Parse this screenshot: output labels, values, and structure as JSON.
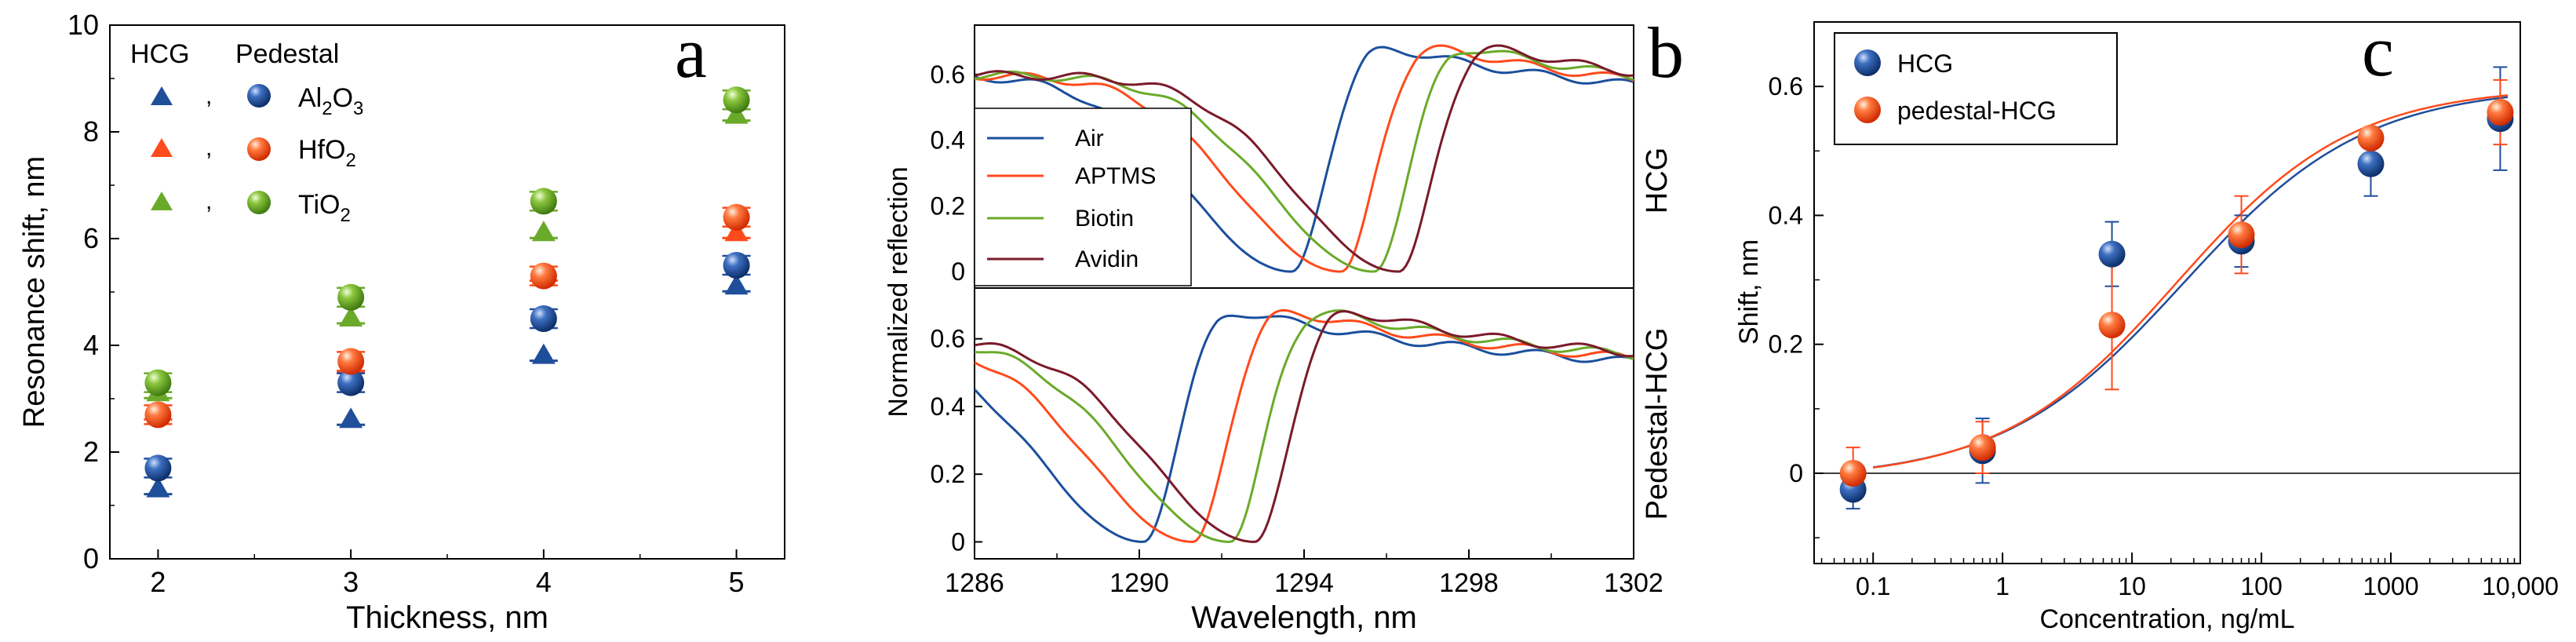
{
  "colors": {
    "blue": "#1f4e9a",
    "red": "#ff4a1c",
    "green": "#6aaa2a",
    "maroon": "#7a1a2a",
    "air": "#1a4f9c",
    "aptms": "#ff4a1c",
    "biotin": "#6aaa2a",
    "avidin": "#7a1a2a",
    "fit_blue": "#1f4e9a",
    "fit_red": "#ff4a1c"
  },
  "chart_data": [
    {
      "panel": "a",
      "type": "scatter",
      "ylabel": "Resonance shift, nm",
      "xlabel": "Thickness, nm",
      "xlim": [
        1.75,
        5.25
      ],
      "ylim": [
        0,
        10
      ],
      "xticks": [
        "2",
        "3",
        "4",
        "5"
      ],
      "yticks": [
        "0",
        "2",
        "4",
        "6",
        "8",
        "10"
      ],
      "legend": {
        "header_hcg": "HCG",
        "header_pedestal": "Pedestal",
        "sep": ",",
        "rows": [
          {
            "name": "Al",
            "sub": "2",
            "rest": "O",
            "sub2": "3",
            "color": "blue"
          },
          {
            "name": "HfO",
            "sub": "2",
            "rest": "",
            "sub2": "",
            "color": "red"
          },
          {
            "name": "TiO",
            "sub": "2",
            "rest": "",
            "sub2": "",
            "color": "green"
          }
        ]
      },
      "x": [
        2,
        3,
        4,
        5
      ],
      "series": [
        {
          "name": "Al2O3 HCG",
          "marker": "triangle",
          "color": "blue",
          "values": [
            1.3,
            2.6,
            3.8,
            5.1
          ]
        },
        {
          "name": "HfO2 HCG",
          "marker": "triangle",
          "color": "red",
          "values": [
            2.7,
            3.6,
            5.3,
            6.1
          ]
        },
        {
          "name": "TiO2 HCG",
          "marker": "triangle",
          "color": "green",
          "values": [
            3.1,
            4.5,
            6.1,
            8.3
          ]
        },
        {
          "name": "Al2O3 Pedestal",
          "marker": "circle",
          "color": "blue",
          "values": [
            1.7,
            3.3,
            4.5,
            5.5
          ]
        },
        {
          "name": "HfO2 Pedestal",
          "marker": "circle",
          "color": "red",
          "values": [
            2.7,
            3.7,
            5.3,
            6.4
          ]
        },
        {
          "name": "TiO2 Pedestal",
          "marker": "circle",
          "color": "green",
          "values": [
            3.3,
            4.9,
            6.7,
            8.6
          ]
        }
      ]
    },
    {
      "panel": "b",
      "type": "line",
      "ylabel": "Normalized reflection",
      "xlabel": "Wavelength, nm",
      "xlim": [
        1286,
        1302
      ],
      "xticks": [
        "1286",
        "1290",
        "1294",
        "1298",
        "1302"
      ],
      "yticks": [
        "0",
        "0.2",
        "0.4",
        "0.6"
      ],
      "subplots": [
        {
          "label": "HCG",
          "ylim": [
            -0.05,
            0.75
          ],
          "series": [
            {
              "name": "Air",
              "color": "air",
              "center": 1293.7
            },
            {
              "name": "APTMS",
              "color": "aptms",
              "center": 1294.9
            },
            {
              "name": "Biotin",
              "color": "biotin",
              "center": 1295.7
            },
            {
              "name": "Avidin",
              "color": "avidin",
              "center": 1296.3
            }
          ]
        },
        {
          "label": "Pedestal-HCG",
          "ylim": [
            -0.05,
            0.75
          ],
          "series": [
            {
              "name": "Air",
              "color": "air",
              "center": 1290.1
            },
            {
              "name": "APTMS",
              "color": "aptms",
              "center": 1291.3
            },
            {
              "name": "Biotin",
              "color": "biotin",
              "center": 1292.2
            },
            {
              "name": "Avidin",
              "color": "avidin",
              "center": 1292.8
            }
          ]
        }
      ],
      "legend": [
        "Air",
        "APTMS",
        "Biotin",
        "Avidin"
      ]
    },
    {
      "panel": "c",
      "type": "scatter",
      "ylabel": "Shift, nm",
      "xlabel": "Concentration, ng/mL",
      "xscale": "log",
      "xlim": [
        0.035,
        10000
      ],
      "ylim": [
        -0.14,
        0.7
      ],
      "xticks": [
        "0.1",
        "1",
        "10",
        "100",
        "1000",
        "10,000"
      ],
      "yticks": [
        "0",
        "0.2",
        "0.4",
        "0.6"
      ],
      "legend": [
        "HCG",
        "pedestal-HCG"
      ],
      "series": [
        {
          "name": "HCG",
          "color": "blue",
          "x": [
            0.07,
            0.7,
            7,
            70,
            700,
            7000
          ],
          "y": [
            -0.025,
            0.035,
            0.34,
            0.36,
            0.48,
            0.55
          ],
          "err": [
            0.03,
            0.05,
            0.05,
            0.04,
            0.05,
            0.08
          ]
        },
        {
          "name": "pedestal-HCG",
          "color": "red",
          "x": [
            0.07,
            0.7,
            7,
            70,
            700,
            7000
          ],
          "y": [
            0.0,
            0.04,
            0.23,
            0.37,
            0.52,
            0.56
          ],
          "err": [
            0.04,
            0.04,
            0.1,
            0.06,
            0.01,
            0.05
          ]
        }
      ],
      "fit": [
        {
          "name": "HCG fit",
          "color": "fit_blue",
          "bottom": -0.01,
          "top": 0.6,
          "ec50": 25,
          "slope": 0.62
        },
        {
          "name": "pedestal-HCG fit",
          "color": "fit_red",
          "bottom": -0.01,
          "top": 0.6,
          "ec50": 22,
          "slope": 0.64
        }
      ]
    }
  ]
}
